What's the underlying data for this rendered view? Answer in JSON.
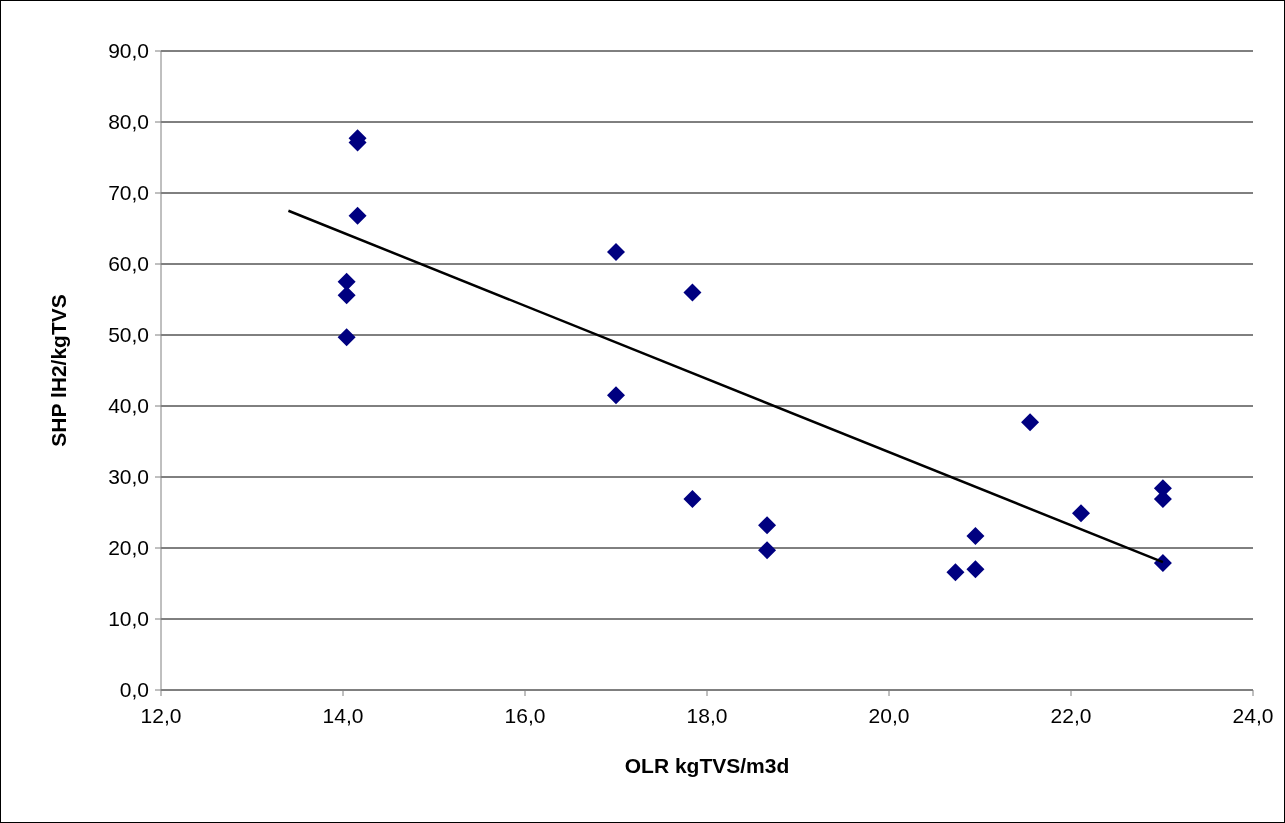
{
  "chart_data": {
    "type": "scatter",
    "xlabel": "OLR kgTVS/m3d",
    "ylabel": "SHP lH2/kgTVS",
    "xlim": [
      12,
      24
    ],
    "xticks": [
      {
        "value": 12,
        "label": "12,0"
      },
      {
        "value": 14,
        "label": "14,0"
      },
      {
        "value": 16,
        "label": "16,0"
      },
      {
        "value": 18,
        "label": "18,0"
      },
      {
        "value": 20,
        "label": "20,0"
      },
      {
        "value": 22,
        "label": "22,0"
      },
      {
        "value": 24,
        "label": "24,0"
      }
    ],
    "ylim": [
      0,
      90
    ],
    "yticks": [
      {
        "value": 0,
        "label": "0,0"
      },
      {
        "value": 10,
        "label": "10,0"
      },
      {
        "value": 20,
        "label": "20,0"
      },
      {
        "value": 30,
        "label": "30,0"
      },
      {
        "value": 40,
        "label": "40,0"
      },
      {
        "value": 50,
        "label": "50,0"
      },
      {
        "value": 60,
        "label": "60,0"
      },
      {
        "value": 70,
        "label": "70,0"
      },
      {
        "value": 80,
        "label": "80,0"
      },
      {
        "value": 90,
        "label": "90,0"
      }
    ],
    "grid": "y",
    "series": [
      {
        "marker": "diamond",
        "color": "#000080",
        "x": [
          14.16,
          14.16,
          14.16,
          14.04,
          14.04,
          14.04,
          17.0,
          17.0,
          17.84,
          17.84,
          18.66,
          18.66,
          20.73,
          20.95,
          20.95,
          21.55,
          22.11,
          23.01,
          23.01,
          23.01
        ],
        "values": [
          77.7,
          77.1,
          66.8,
          57.5,
          55.6,
          49.7,
          61.7,
          41.5,
          56.0,
          26.9,
          23.2,
          19.7,
          16.6,
          17.0,
          21.7,
          37.7,
          24.9,
          28.4,
          26.9,
          17.9
        ]
      },
      {
        "type": "line",
        "marker": "none",
        "line_style": "solid",
        "color": "#000000",
        "x": [
          13.4,
          23.01
        ],
        "values": [
          67.5,
          18.0
        ]
      }
    ]
  }
}
